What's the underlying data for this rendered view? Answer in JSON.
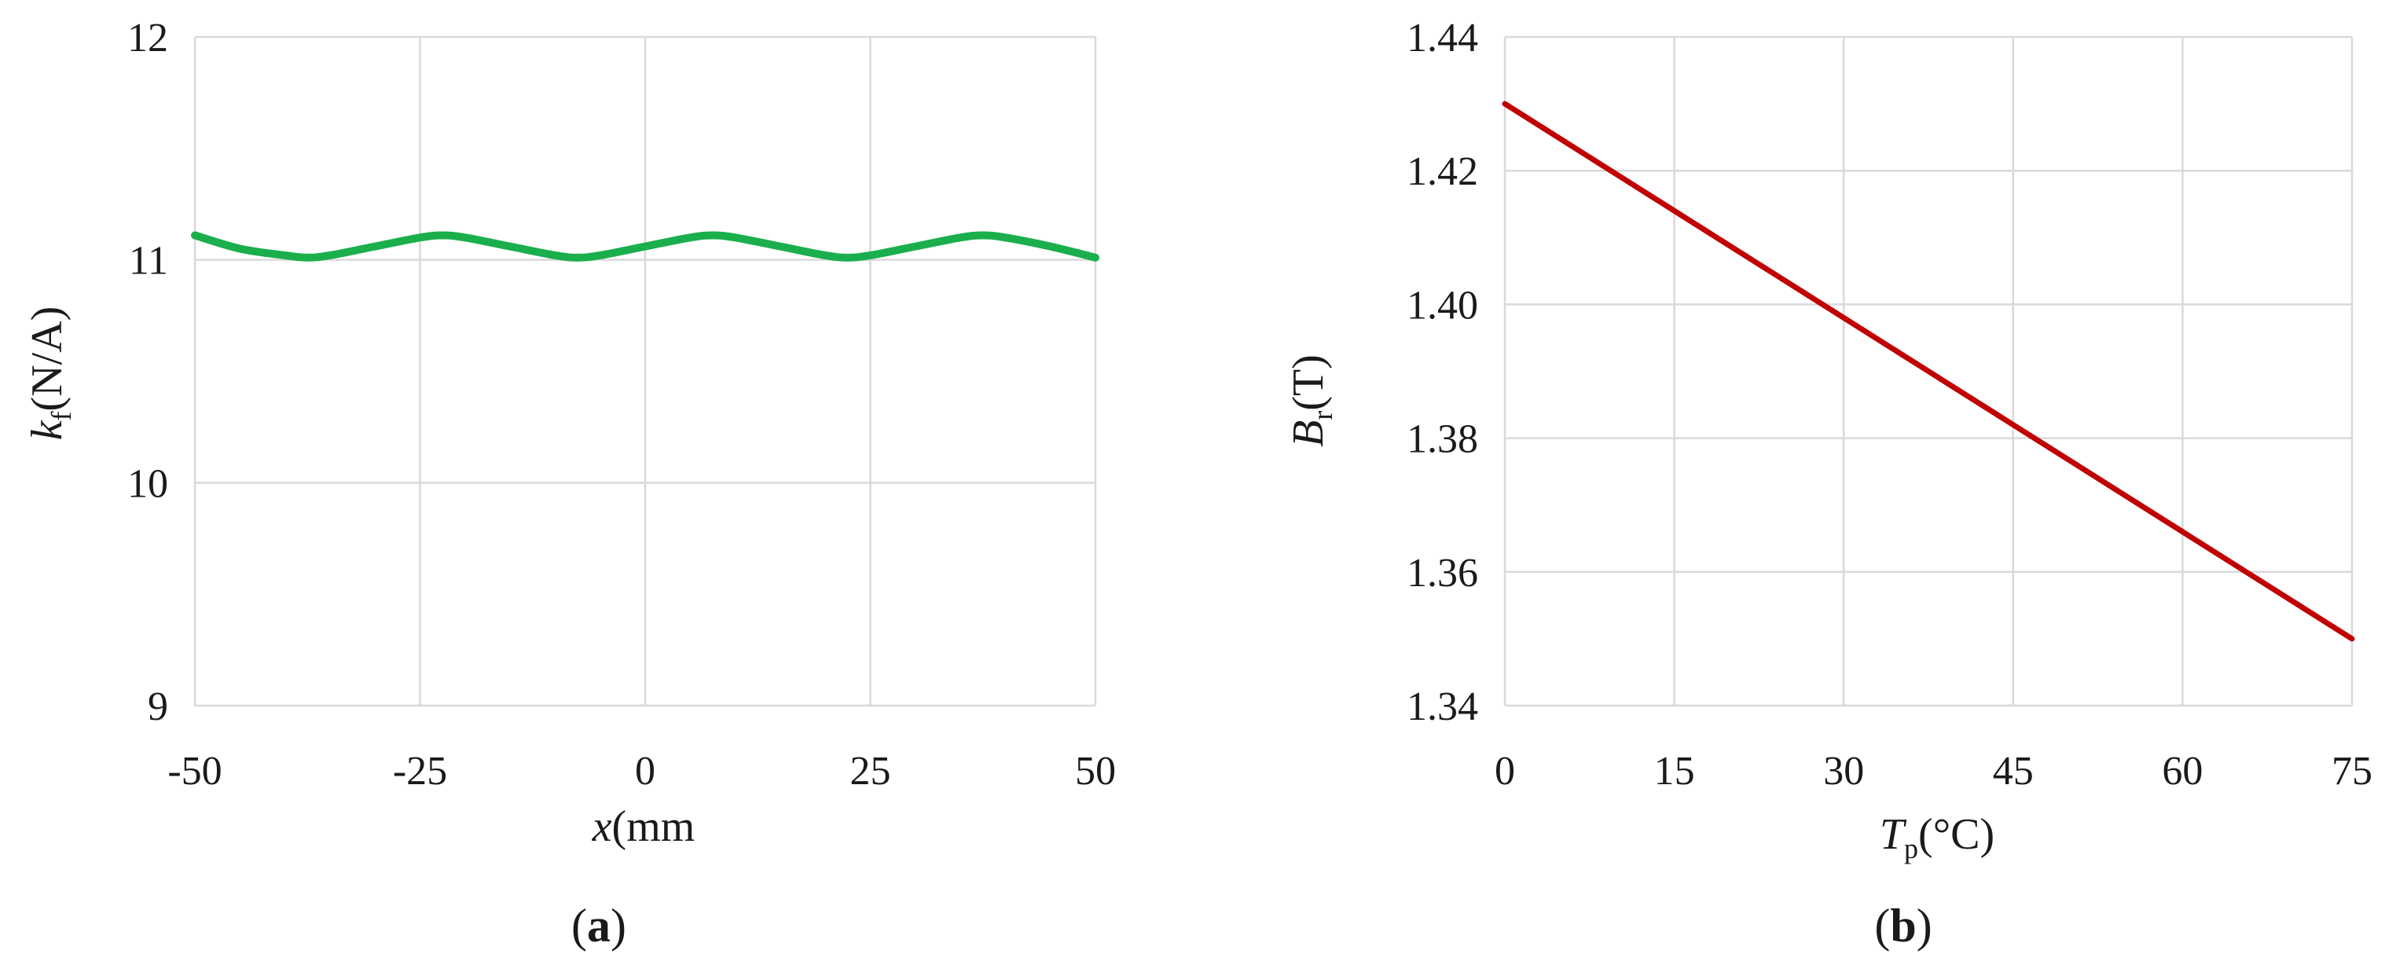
{
  "chart_data": [
    {
      "type": "line",
      "panel_label": "a",
      "xlabel": {
        "var": "x",
        "unit": "(mm"
      },
      "ylabel": {
        "var": "k",
        "sub": "f",
        "unit": "(N/A)"
      },
      "xlim": [
        -50,
        50
      ],
      "ylim": [
        9,
        12
      ],
      "xticks": [
        -50,
        -25,
        0,
        25,
        50
      ],
      "yticks": [
        9,
        10,
        11,
        12
      ],
      "xtick_labels": [
        "-50",
        "-25",
        "0",
        "25",
        "50"
      ],
      "ytick_labels": [
        "9",
        "10",
        "11",
        "12"
      ],
      "grid": true,
      "color": "#1aaf4c",
      "series": [
        {
          "x": [
            -50,
            -45,
            -40,
            -37.5,
            -35,
            -30,
            -25,
            -22.5,
            -20,
            -15,
            -10,
            -7.5,
            -5,
            0,
            5,
            7.5,
            10,
            15,
            20,
            22.5,
            25,
            30,
            35,
            37.5,
            40,
            45,
            50
          ],
          "y": [
            11.11,
            11.05,
            11.02,
            11.01,
            11.02,
            11.06,
            11.1,
            11.11,
            11.1,
            11.06,
            11.02,
            11.01,
            11.02,
            11.06,
            11.1,
            11.11,
            11.1,
            11.06,
            11.02,
            11.01,
            11.02,
            11.06,
            11.1,
            11.11,
            11.1,
            11.06,
            11.01
          ]
        }
      ]
    },
    {
      "type": "line",
      "panel_label": "b",
      "xlabel": {
        "var": "T",
        "sub": "p",
        "unit": "(°C)"
      },
      "ylabel": {
        "var": "B",
        "sub": "r",
        "unit": "(T)"
      },
      "xlim": [
        0,
        75
      ],
      "ylim": [
        1.34,
        1.44
      ],
      "xticks": [
        0,
        15,
        30,
        45,
        60,
        75
      ],
      "yticks": [
        1.34,
        1.36,
        1.38,
        1.4,
        1.42,
        1.44
      ],
      "xtick_labels": [
        "0",
        "15",
        "30",
        "45",
        "60",
        "75"
      ],
      "ytick_labels": [
        "1.34",
        "1.36",
        "1.38",
        "1.40",
        "1.42",
        "1.44"
      ],
      "grid": true,
      "color": "#c00000",
      "series": [
        {
          "x": [
            0,
            15,
            30,
            45,
            60,
            75
          ],
          "y": [
            1.43,
            1.414,
            1.398,
            1.382,
            1.366,
            1.35
          ]
        }
      ]
    }
  ]
}
